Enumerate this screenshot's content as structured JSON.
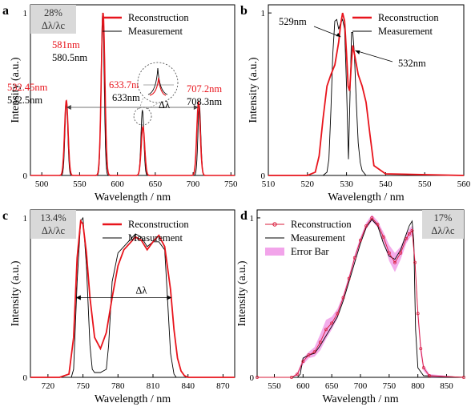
{
  "colors": {
    "reconstruction": "#e8141c",
    "measurement": "#000000",
    "errorbar": "#e85ad8",
    "grey_box": "#d9d9d9",
    "dark_box_text": "#333333"
  },
  "chart_data": [
    {
      "panel": "a",
      "type": "line",
      "xlabel": "Wavelength / nm",
      "ylabel": "Intensity (a.u.)",
      "xlim": [
        485,
        755
      ],
      "ylim": [
        0,
        1.05
      ],
      "xticks": [
        500,
        550,
        600,
        650,
        700,
        750
      ],
      "yticks": [
        0,
        1
      ],
      "legend": [
        "Reconstruction",
        "Measurement"
      ],
      "legend_position": "top-right",
      "box_lines": [
        "28%",
        "Δλ/λc"
      ],
      "annotations": [
        {
          "text": "581nm",
          "color": "red"
        },
        {
          "text": "580.5nm",
          "color": "black"
        },
        {
          "text": "532.45nm",
          "color": "red"
        },
        {
          "text": "532.5nm",
          "color": "black"
        },
        {
          "text": "633.7nm",
          "color": "red"
        },
        {
          "text": "633nm",
          "color": "black"
        },
        {
          "text": "707.2nm",
          "color": "red"
        },
        {
          "text": "708.3nm",
          "color": "black"
        },
        {
          "text": "Δλ",
          "color": "black"
        }
      ],
      "peaks": {
        "reconstruction": [
          {
            "center": 532.45,
            "height": 0.46,
            "width": 2.3
          },
          {
            "center": 581,
            "height": 1.0,
            "width": 2.4
          },
          {
            "center": 633.7,
            "height": 0.3,
            "width": 2.3
          },
          {
            "center": 707.2,
            "height": 0.45,
            "width": 2.3
          }
        ],
        "measurement": [
          {
            "center": 532.5,
            "height": 0.44,
            "width": 1.9
          },
          {
            "center": 580.5,
            "height": 1.0,
            "width": 2.0
          },
          {
            "center": 633,
            "height": 0.4,
            "width": 1.9
          },
          {
            "center": 708.3,
            "height": 0.43,
            "width": 1.9
          }
        ]
      }
    },
    {
      "panel": "b",
      "type": "line",
      "xlabel": "Wavelength / nm",
      "ylabel": "Intensity (a.u.)",
      "xlim": [
        510,
        560
      ],
      "ylim": [
        0,
        1.05
      ],
      "xticks": [
        510,
        520,
        530,
        540,
        550,
        560
      ],
      "yticks": [
        0,
        1
      ],
      "legend": [
        "Reconstruction",
        "Measurement"
      ],
      "legend_position": "top-right",
      "annotations": [
        {
          "text": "529nm"
        },
        {
          "text": "532nm"
        }
      ],
      "series": [
        {
          "name": "Reconstruction",
          "x": [
            510,
            520,
            522,
            523,
            524,
            525,
            526,
            527,
            528,
            528.5,
            529,
            529.5,
            530,
            530.4,
            530.8,
            531.2,
            531.6,
            532,
            533,
            534,
            535,
            536,
            537,
            540,
            560
          ],
          "y": [
            0,
            0,
            0.02,
            0.12,
            0.35,
            0.55,
            0.62,
            0.68,
            0.82,
            0.93,
            1.0,
            0.95,
            0.75,
            0.55,
            0.52,
            0.68,
            0.8,
            0.75,
            0.62,
            0.55,
            0.45,
            0.25,
            0.06,
            0.01,
            0
          ]
        },
        {
          "name": "Measurement",
          "x": [
            510,
            524,
            525,
            525.5,
            526,
            526.5,
            527,
            527.5,
            528,
            528.5,
            529,
            529.5,
            530,
            530.5,
            531,
            531.3,
            531.6,
            532,
            532.5,
            533,
            533.5,
            534,
            535,
            560
          ],
          "y": [
            0,
            0,
            0.02,
            0.1,
            0.4,
            0.75,
            0.95,
            0.96,
            0.9,
            0.94,
            0.96,
            0.9,
            0.55,
            0.1,
            0.6,
            0.88,
            0.88,
            0.75,
            0.45,
            0.2,
            0.08,
            0.03,
            0,
            0
          ]
        }
      ]
    },
    {
      "panel": "c",
      "type": "line",
      "xlabel": "Wavelength / nm",
      "ylabel": "Intensity (a.u.)",
      "xlim": [
        705,
        880
      ],
      "ylim": [
        0,
        1.05
      ],
      "xticks": [
        720,
        750,
        780,
        810,
        840,
        870
      ],
      "yticks": [
        0,
        1
      ],
      "legend": [
        "Reconstruction",
        "Measurement"
      ],
      "legend_position": "top-right",
      "box_lines": [
        "13.4%",
        "Δλ/λc"
      ],
      "annotations": [
        {
          "text": "Δλ"
        }
      ],
      "series": [
        {
          "name": "Reconstruction",
          "x": [
            705,
            730,
            738,
            742,
            745,
            748,
            750,
            753,
            756,
            760,
            765,
            770,
            775,
            780,
            785,
            790,
            795,
            800,
            805,
            810,
            815,
            820,
            825,
            828,
            831,
            834,
            837,
            840,
            880
          ],
          "y": [
            0,
            0,
            0.02,
            0.25,
            0.75,
            0.98,
            0.96,
            0.78,
            0.5,
            0.25,
            0.18,
            0.28,
            0.5,
            0.7,
            0.8,
            0.84,
            0.88,
            0.86,
            0.8,
            0.85,
            0.89,
            0.82,
            0.55,
            0.3,
            0.12,
            0.04,
            0.01,
            0,
            0
          ]
        },
        {
          "name": "Measurement",
          "x": [
            705,
            740,
            742,
            745,
            748,
            750,
            753,
            756,
            758,
            760,
            765,
            770,
            772,
            775,
            780,
            785,
            790,
            795,
            800,
            805,
            810,
            815,
            820,
            822,
            825,
            828,
            830,
            880
          ],
          "y": [
            0,
            0,
            0.05,
            0.6,
            0.98,
            1.0,
            0.7,
            0.2,
            0.05,
            0.03,
            0.03,
            0.05,
            0.2,
            0.6,
            0.78,
            0.82,
            0.86,
            0.9,
            0.88,
            0.82,
            0.85,
            0.85,
            0.8,
            0.55,
            0.15,
            0.02,
            0,
            0
          ]
        }
      ]
    },
    {
      "panel": "d",
      "type": "line",
      "xlabel": "Wavelength / nm",
      "ylabel": "Intensity (a.u.)",
      "xlim": [
        520,
        880
      ],
      "ylim": [
        0,
        1.05
      ],
      "xticks": [
        550,
        600,
        650,
        700,
        750,
        800,
        850
      ],
      "yticks": [
        0,
        1
      ],
      "legend": [
        "Reconstruction",
        "Measurement",
        "Error Bar"
      ],
      "legend_position": "top-left",
      "box_lines": [
        "17%",
        "Δλ/λc"
      ],
      "series": [
        {
          "name": "Reconstruction",
          "x": [
            520,
            580,
            590,
            600,
            610,
            620,
            630,
            640,
            650,
            660,
            670,
            680,
            690,
            700,
            710,
            720,
            730,
            740,
            750,
            760,
            770,
            780,
            785,
            790,
            795,
            800,
            805,
            810,
            820,
            880
          ],
          "y": [
            0,
            0,
            0.02,
            0.1,
            0.14,
            0.16,
            0.22,
            0.3,
            0.34,
            0.4,
            0.5,
            0.62,
            0.75,
            0.86,
            0.95,
            1.0,
            0.96,
            0.88,
            0.78,
            0.72,
            0.78,
            0.87,
            0.9,
            0.92,
            0.72,
            0.4,
            0.18,
            0.06,
            0.01,
            0
          ],
          "error": [
            0,
            0,
            0.01,
            0.02,
            0.02,
            0.03,
            0.05,
            0.06,
            0.04,
            0.03,
            0.02,
            0.02,
            0.02,
            0.02,
            0.02,
            0.02,
            0.02,
            0.03,
            0.05,
            0.06,
            0.04,
            0.03,
            0.03,
            0.03,
            0.04,
            0.05,
            0.04,
            0.02,
            0.01,
            0
          ]
        },
        {
          "name": "Measurement",
          "x": [
            520,
            590,
            595,
            600,
            610,
            620,
            630,
            640,
            650,
            660,
            670,
            680,
            690,
            700,
            710,
            720,
            730,
            740,
            750,
            760,
            770,
            780,
            785,
            790,
            793,
            796,
            800,
            810,
            880
          ],
          "y": [
            0,
            0,
            0.02,
            0.12,
            0.14,
            0.15,
            0.2,
            0.26,
            0.32,
            0.38,
            0.48,
            0.6,
            0.72,
            0.84,
            0.94,
            0.99,
            0.95,
            0.84,
            0.76,
            0.74,
            0.8,
            0.9,
            0.95,
            0.98,
            0.85,
            0.3,
            0.06,
            0.01,
            0
          ]
        }
      ]
    }
  ]
}
